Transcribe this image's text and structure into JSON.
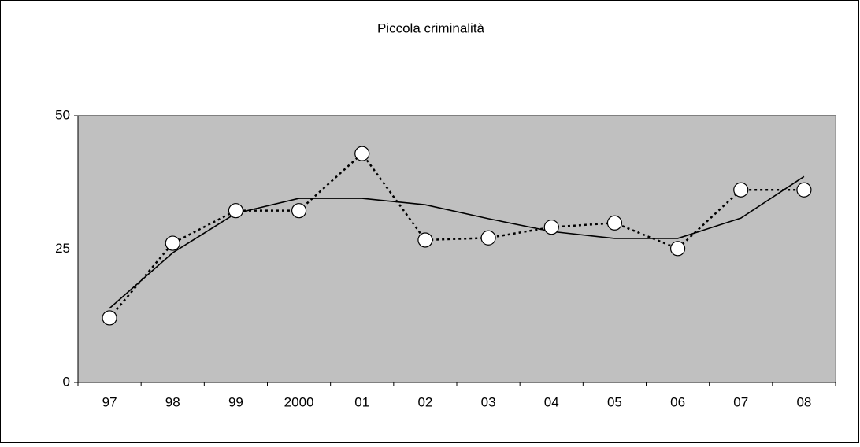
{
  "chart_data": {
    "type": "line",
    "title": "Piccola criminalità",
    "categories": [
      "97",
      "98",
      "99",
      "2000",
      "01",
      "02",
      "03",
      "04",
      "05",
      "06",
      "07",
      "08"
    ],
    "series": [
      {
        "color": "#000000",
        "line_style": "dotted",
        "marker": "circle",
        "values": [
          12.1,
          26.1,
          32.2,
          32.2,
          42.9,
          26.7,
          27.1,
          29.1,
          29.9,
          25.1,
          36.1,
          36.1
        ]
      },
      {
        "color": "#000000",
        "line_style": "solid",
        "marker": "none",
        "values": [
          13.9,
          24.3,
          31.7,
          34.5,
          34.5,
          33.3,
          30.7,
          28.3,
          27.0,
          27.0,
          30.8,
          38.6
        ]
      }
    ],
    "ylim": [
      0,
      50
    ],
    "yticks": [
      0,
      25,
      50
    ],
    "grid": true,
    "plot_background": "#c0c0c0"
  }
}
